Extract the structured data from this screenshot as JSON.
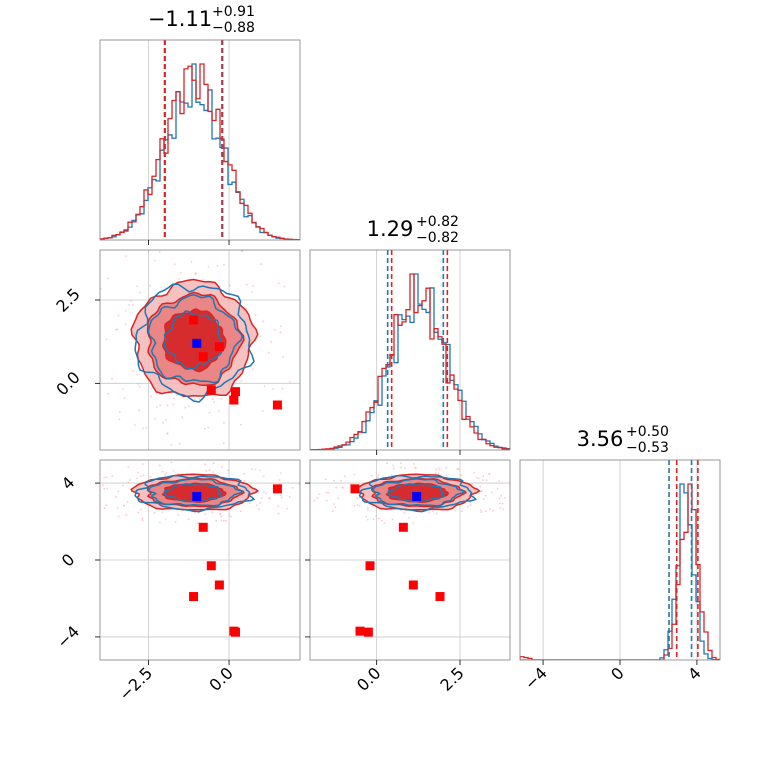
{
  "chart_data": {
    "type": "corner",
    "colors": {
      "series_a": "#1f77b4",
      "series_b": "#d62728",
      "truth": "#0000ff",
      "points": "#ff0000"
    },
    "parameters": [
      {
        "index": 0,
        "range": [
          -4.0,
          2.2
        ],
        "title": {
          "median": "−1.11",
          "plus": "+0.91",
          "minus": "−0.88"
        },
        "ticks": [
          -2.5,
          0.0
        ],
        "tick_labels": [
          "−2.5",
          "0.0"
        ],
        "quantiles": {
          "series_a": [
            -1.98,
            -0.2
          ],
          "series_b": [
            -2.0,
            -0.22
          ]
        }
      },
      {
        "index": 1,
        "range": [
          -2.0,
          4.0
        ],
        "title": {
          "median": "1.29",
          "plus": "+0.82",
          "minus": "−0.82"
        },
        "ticks": [
          0.0,
          2.5
        ],
        "tick_labels": [
          "0.0",
          "2.5"
        ],
        "quantiles": {
          "series_a": [
            0.33,
            2.0
          ],
          "series_b": [
            0.45,
            2.12
          ]
        }
      },
      {
        "index": 2,
        "range": [
          -5.2,
          5.2
        ],
        "title": {
          "median": "3.56",
          "plus": "+0.50",
          "minus": "−0.53"
        },
        "ticks": [
          -4,
          0,
          4
        ],
        "tick_labels": [
          "−4",
          "0",
          "4"
        ],
        "quantiles": {
          "series_a": [
            2.55,
            3.72
          ],
          "series_b": [
            2.95,
            4.05
          ]
        }
      }
    ],
    "histograms": {
      "series_a": {
        "mean": [
          -1.1,
          1.3,
          3.4
        ],
        "sd": [
          0.9,
          0.85,
          0.42
        ]
      },
      "series_b": {
        "mean": [
          -1.1,
          1.2,
          3.6
        ],
        "sd": [
          0.9,
          0.85,
          0.45
        ]
      }
    },
    "contours": {
      "p1_p0": {
        "center": [
          -1.1,
          1.3
        ],
        "spread": [
          0.9,
          0.85
        ]
      },
      "p2_p0": {
        "center": [
          -1.1,
          3.5
        ],
        "spread": [
          0.9,
          0.45
        ]
      },
      "p2_p1": {
        "center": [
          1.2,
          3.5
        ],
        "spread": [
          0.85,
          0.45
        ]
      }
    },
    "truth": {
      "p0": -1.0,
      "p1": 1.2,
      "p2": 3.3
    },
    "marked_points": [
      {
        "p0": -1.1,
        "p1": 1.9,
        "p2": -1.9
      },
      {
        "p0": -0.8,
        "p1": 0.8,
        "p2": 1.7
      },
      {
        "p0": -0.3,
        "p1": 1.1,
        "p2": -1.3
      },
      {
        "p0": -0.55,
        "p1": -0.2,
        "p2": -0.3
      },
      {
        "p0": 0.15,
        "p1": -0.5,
        "p2": -3.7
      },
      {
        "p0": 0.2,
        "p1": -0.25,
        "p2": -3.75
      },
      {
        "p0": 1.5,
        "p1": -0.65,
        "p2": 3.7
      }
    ]
  }
}
